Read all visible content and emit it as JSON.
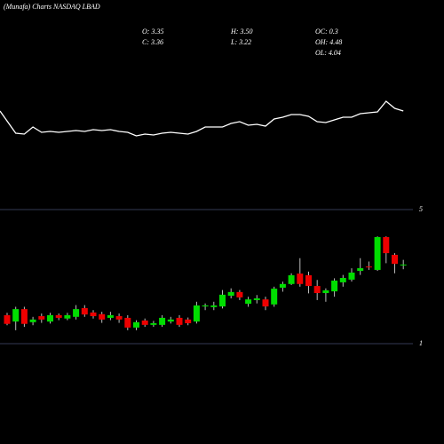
{
  "chart_data": [
    {
      "type": "line",
      "title": "(Munafa) Charts NASDAQ LBAD",
      "color": "#ffffff",
      "values": [
        75,
        50,
        49,
        57,
        51,
        52,
        51,
        52,
        53,
        52,
        54,
        53,
        54,
        52,
        51,
        47,
        49,
        48,
        50,
        51,
        50,
        49,
        52,
        57,
        57,
        57,
        61,
        63,
        59,
        60,
        58,
        66,
        68,
        71,
        71,
        69,
        63,
        62,
        65,
        68,
        68,
        72,
        73,
        74,
        86,
        78,
        75
      ]
    },
    {
      "type": "candlestick",
      "annotations": [
        "O: 3.35",
        "H: 3.50",
        "OC: 0.3",
        "C: 3.36",
        "L: 3.22",
        "OH: 4.48",
        "OL: 4.04"
      ],
      "up_color": "#00dd00",
      "down_color": "#ee0000",
      "ylim": [
        1,
        5
      ],
      "yticks": [
        1,
        5
      ],
      "grid": true,
      "open": [
        1.85,
        1.66,
        2.03,
        1.64,
        1.82,
        1.66,
        1.85,
        1.75,
        1.8,
        2.06,
        1.93,
        1.88,
        1.77,
        1.82,
        1.77,
        1.48,
        1.69,
        1.56,
        1.56,
        1.66,
        1.77,
        1.72,
        1.66,
        2.11,
        2.09,
        2.11,
        2.43,
        2.54,
        2.19,
        2.3,
        2.32,
        2.17,
        2.67,
        2.78,
        3.09,
        3.04,
        2.72,
        2.51,
        2.56,
        2.83,
        2.91,
        3.17,
        3.3,
        3.2,
        4.18,
        3.65,
        3.35
      ],
      "high": [
        1.92,
        2.1,
        2.1,
        1.8,
        1.9,
        1.92,
        1.9,
        1.92,
        2.15,
        2.15,
        2.0,
        1.95,
        1.95,
        1.9,
        1.85,
        1.7,
        1.75,
        1.68,
        1.85,
        1.8,
        1.85,
        1.78,
        2.25,
        2.2,
        2.25,
        2.6,
        2.65,
        2.6,
        2.4,
        2.45,
        2.4,
        2.7,
        2.85,
        3.1,
        3.55,
        3.15,
        2.9,
        2.65,
        2.95,
        3.05,
        3.25,
        3.55,
        3.45,
        4.2,
        4.2,
        3.7,
        3.5
      ],
      "low": [
        1.55,
        1.4,
        1.5,
        1.55,
        1.62,
        1.6,
        1.7,
        1.7,
        1.72,
        1.8,
        1.75,
        1.62,
        1.7,
        1.62,
        1.4,
        1.4,
        1.5,
        1.5,
        1.5,
        1.6,
        1.5,
        1.55,
        1.6,
        2.0,
        2.0,
        2.05,
        2.35,
        2.3,
        2.1,
        2.2,
        2.0,
        2.1,
        2.55,
        2.75,
        2.7,
        2.5,
        2.3,
        2.25,
        2.4,
        2.7,
        2.85,
        3.05,
        3.2,
        3.17,
        3.4,
        3.1,
        3.22
      ],
      "close": [
        1.59,
        2.03,
        1.59,
        1.72,
        1.72,
        1.85,
        1.77,
        1.85,
        2.03,
        1.87,
        1.82,
        1.72,
        1.85,
        1.72,
        1.48,
        1.64,
        1.56,
        1.61,
        1.77,
        1.72,
        1.56,
        1.61,
        2.14,
        2.14,
        2.14,
        2.46,
        2.54,
        2.38,
        2.32,
        2.35,
        2.11,
        2.64,
        2.78,
        3.04,
        2.78,
        2.72,
        2.51,
        2.59,
        2.88,
        2.96,
        3.12,
        3.25,
        3.28,
        4.18,
        3.7,
        3.38,
        3.36
      ]
    }
  ]
}
